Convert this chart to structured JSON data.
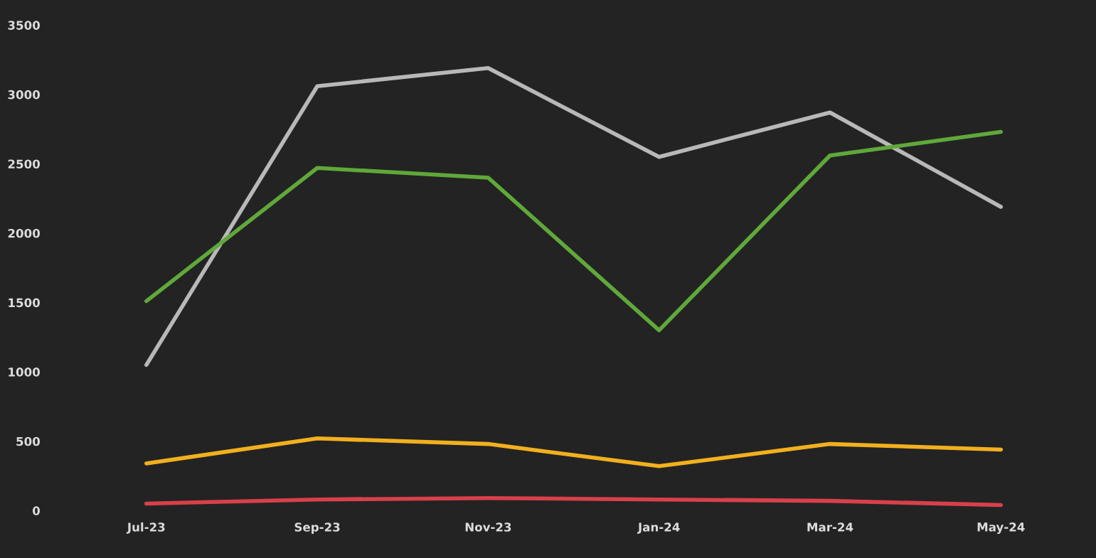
{
  "chart_data": {
    "type": "line",
    "categories": [
      "Jul-23",
      "Sep-23",
      "Nov-23",
      "Jan-24",
      "Mar-24",
      "May-24"
    ],
    "series": [
      {
        "color": "#b8b8b8",
        "values": [
          1050,
          3060,
          3190,
          2550,
          2870,
          2190
        ]
      },
      {
        "color": "#5fa83a",
        "values": [
          1510,
          2470,
          2400,
          1300,
          2560,
          2730
        ]
      },
      {
        "color": "#f2b01e",
        "values": [
          340,
          520,
          480,
          320,
          480,
          440
        ]
      },
      {
        "color": "#d9404a",
        "values": [
          50,
          80,
          90,
          80,
          70,
          40
        ]
      }
    ],
    "ylim": [
      0,
      3500
    ],
    "yticks": [
      0,
      500,
      1000,
      1500,
      2000,
      2500,
      3000,
      3500
    ],
    "grid": false,
    "marker": "none",
    "line_style": "solid"
  }
}
